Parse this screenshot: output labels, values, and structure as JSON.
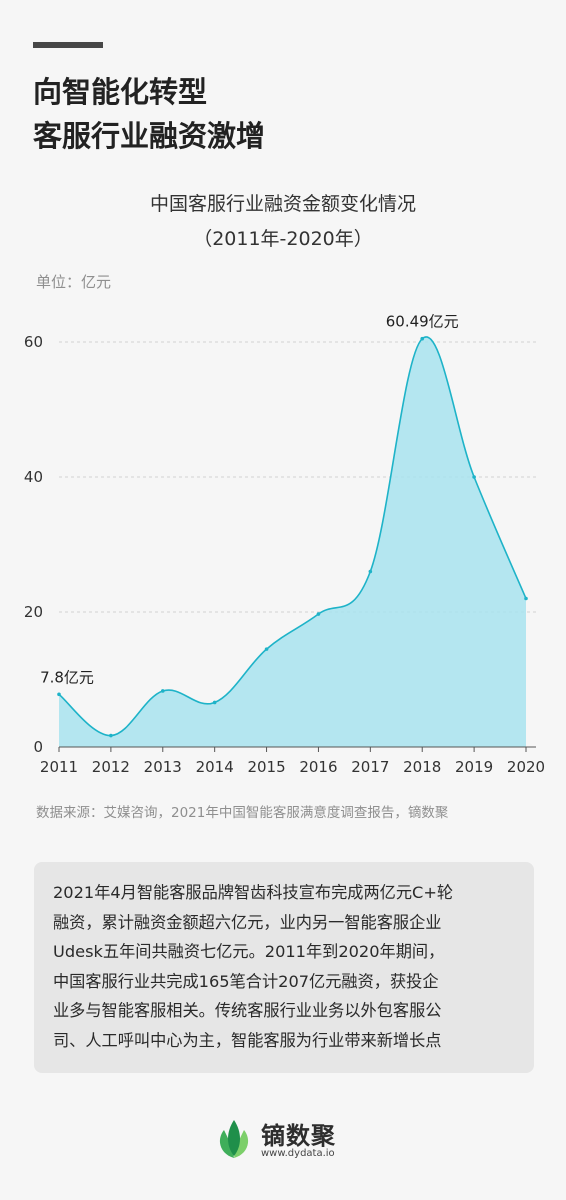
{
  "headline": [
    "向智能化转型",
    "客服行业融资激增"
  ],
  "chart_data": {
    "type": "area",
    "title": "中国客服行业融资金额变化情况",
    "subtitle": "（2011年-2020年）",
    "unit_label": "单位：亿元",
    "x": [
      "2011",
      "2012",
      "2013",
      "2014",
      "2015",
      "2016",
      "2017",
      "2018",
      "2019",
      "2020"
    ],
    "values": [
      7.8,
      1.7,
      8.3,
      6.6,
      14.5,
      19.7,
      26.0,
      60.49,
      40.0,
      22.0
    ],
    "ylim": [
      0,
      66
    ],
    "yticks": [
      0,
      20,
      40,
      60
    ],
    "grid": true,
    "line_color": "#1eb3c8",
    "fill_color": "#a8e3ef",
    "annotations": [
      {
        "x": "2011",
        "label": "7.8亿元"
      },
      {
        "x": "2018",
        "label": "60.49亿元"
      }
    ]
  },
  "source": "数据来源：艾媒咨询，2021年中国智能客服满意度调查报告，镝数聚",
  "description": [
    "2021年4月智能客服品牌智齿科技宣布完成两亿元C+轮",
    "融资，累计融资金额超六亿元，业内另一智能客服企业",
    "Udesk五年间共融资七亿元。2011年到2020年期间，",
    "中国客服行业共完成165笔合计207亿元融资，获投企",
    "业多与智能客服相关。传统客服行业业务以外包客服公",
    "司、人工呼叫中心为主，智能客服为行业带来新增长点"
  ],
  "logo": {
    "name": "镝数聚",
    "url": "www.dydata.io",
    "icon": "leaf-icon"
  }
}
